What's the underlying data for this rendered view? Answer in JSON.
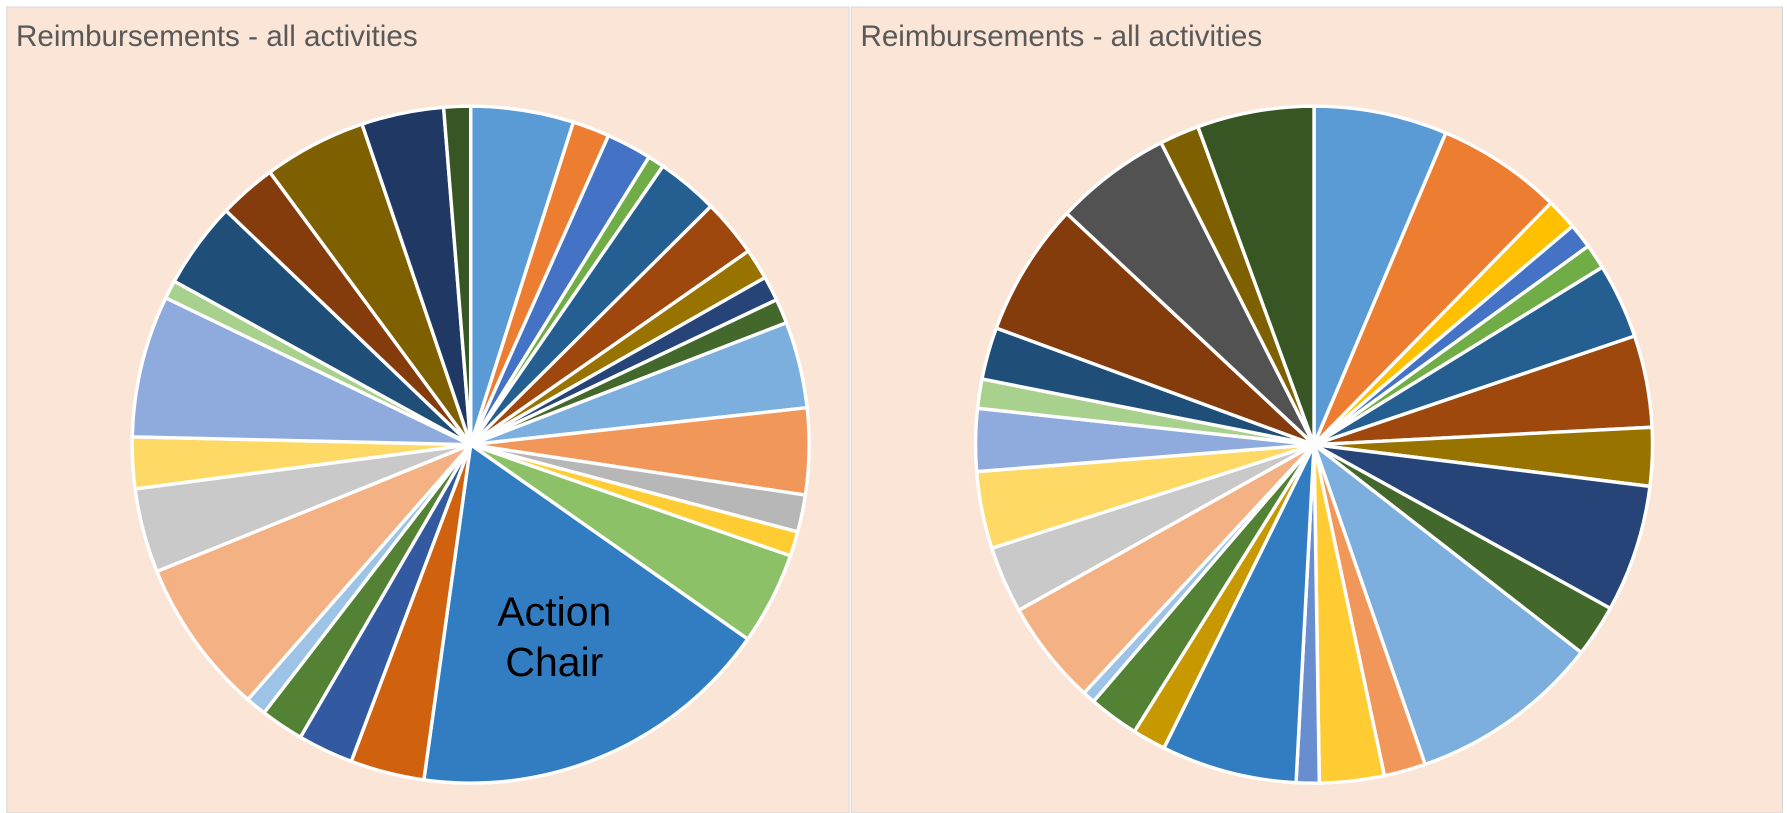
{
  "chart_data": [
    {
      "type": "pie",
      "title": "Reimbursements  - all activities",
      "categories": [
        null,
        null,
        null,
        null,
        null,
        null,
        null,
        null,
        null,
        null,
        null,
        null,
        null,
        null,
        "Action Chair",
        null,
        null,
        null,
        null,
        null,
        null,
        null,
        null,
        null,
        null,
        null,
        null,
        null,
        null
      ],
      "values": [
        5,
        1.8,
        2.2,
        0.8,
        3,
        2.8,
        1.5,
        1.2,
        1.2,
        4.2,
        4.2,
        1.8,
        1.2,
        4.5,
        17.8,
        3.6,
        2.7,
        2.1,
        1,
        7.6,
        4.1,
        2.5,
        6.9,
        0.9,
        4.2,
        2.8,
        5,
        4,
        1.3
      ],
      "colors": [
        "#5B9BD5",
        "#ED7D31",
        "#4472C4",
        "#70AD47",
        "#255E91",
        "#9E480E",
        "#997300",
        "#264478",
        "#43682B",
        "#7CAFDD",
        "#F1975A",
        "#B7B7B7",
        "#FFCD33",
        "#8CC168",
        "#327DC2",
        "#D0610F",
        "#335AA1",
        "#548235",
        "#9DC3E6",
        "#F4B183",
        "#C9C9C9",
        "#FFD966",
        "#8FAADC",
        "#A9D18E",
        "#1F4E79",
        "#843C0C",
        "#7F6000",
        "#203864",
        "#375623"
      ]
    },
    {
      "type": "pie",
      "title": "Reimbursements  - all activities",
      "categories": [
        null,
        null,
        null,
        null,
        null,
        null,
        null,
        null,
        null,
        null,
        null,
        null,
        null,
        null,
        null,
        null,
        null,
        null,
        null,
        null,
        null,
        null,
        null,
        null,
        null,
        null,
        null,
        null
      ],
      "values": [
        6.4,
        6,
        1.5,
        1.2,
        1.2,
        3.6,
        4.4,
        2.8,
        6.1,
        2.5,
        9.2,
        2,
        3.1,
        1.1,
        6.5,
        1.6,
        2.4,
        0.6,
        5,
        3.2,
        3.7,
        3,
        1.4,
        2.5,
        6.4,
        5.6,
        1.9,
        5.6
      ],
      "colors": [
        "#5B9BD5",
        "#ED7D31",
        "#FFC000",
        "#4472C4",
        "#70AD47",
        "#255E91",
        "#9E480E",
        "#997300",
        "#264478",
        "#43682B",
        "#7CAFDD",
        "#F1975A",
        "#FFCD33",
        "#698ED0",
        "#327DC2",
        "#C89800",
        "#548235",
        "#9DC3E6",
        "#F4B183",
        "#C9C9C9",
        "#FFD966",
        "#8FAADC",
        "#A9D18E",
        "#1F4E79",
        "#843C0C",
        "#525252",
        "#7F6000",
        "#375623"
      ]
    }
  ]
}
